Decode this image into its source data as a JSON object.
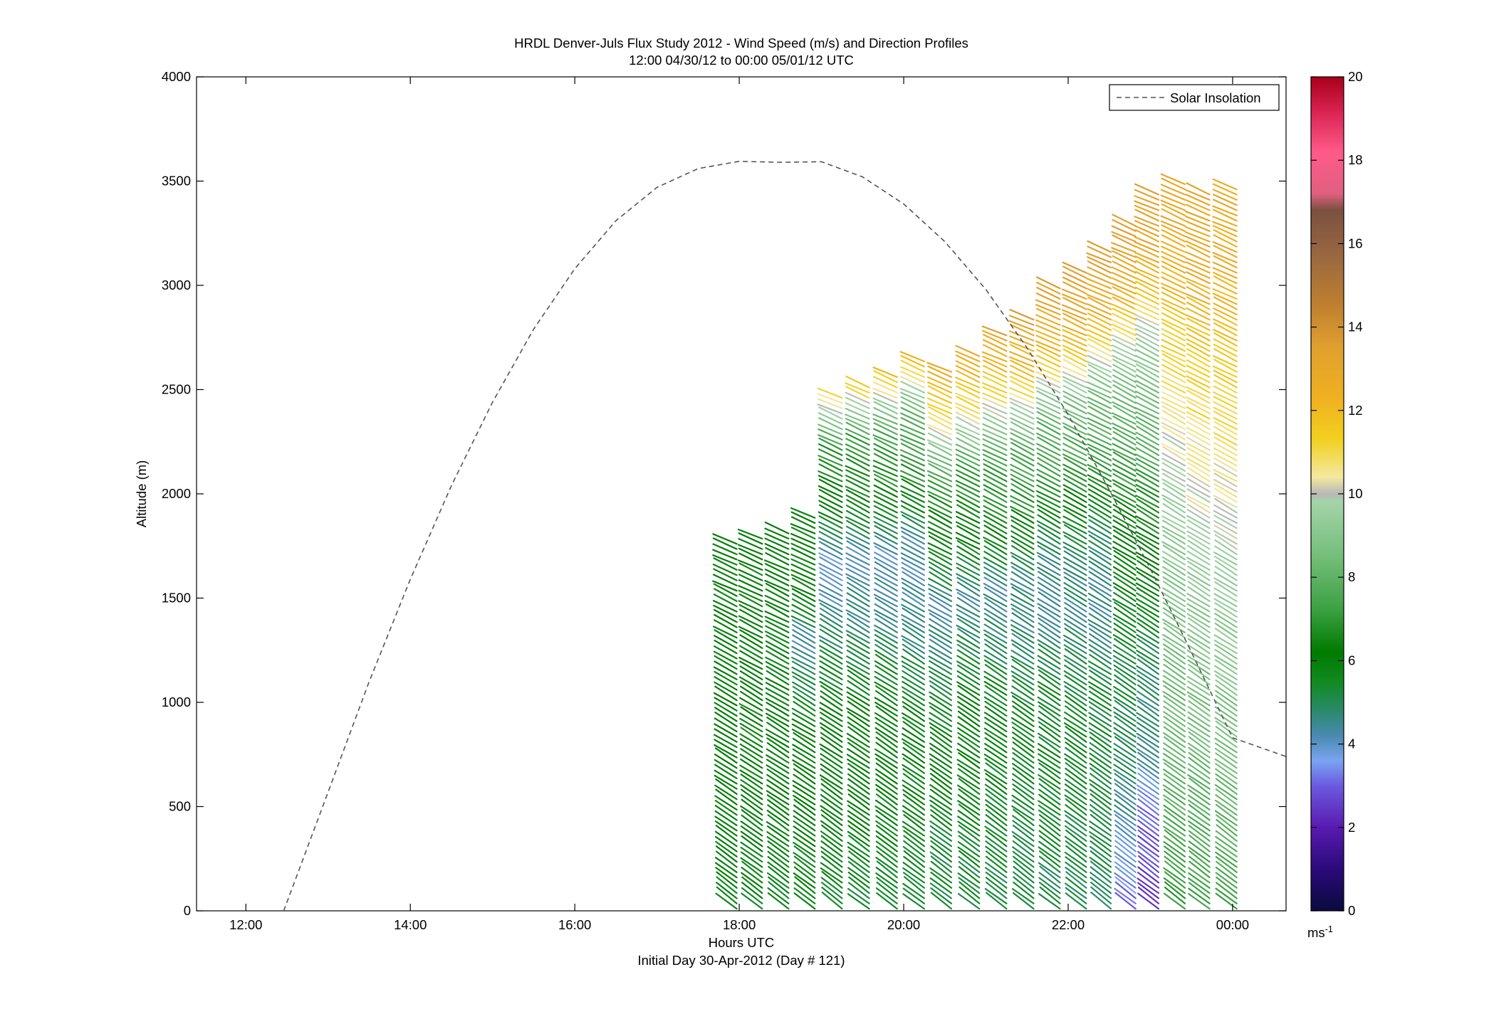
{
  "chart_data": {
    "type": "wind-barb-profile",
    "title": "HRDL Denver-Juls Flux Study 2012 - Wind Speed (m/s) and Direction Profiles",
    "subtitle": "12:00 04/30/12 to 00:00 05/01/12  UTC",
    "xlabel": "Hours UTC",
    "xlabel2": "Initial Day 30-Apr-2012 (Day # 121)",
    "ylabel": "Altitude (m)",
    "xlim": [
      11.4,
      24.65
    ],
    "ylim": [
      0,
      4000
    ],
    "x_ticks": [
      12,
      14,
      16,
      18,
      20,
      22,
      24
    ],
    "x_tick_labels": [
      "12:00",
      "14:00",
      "16:00",
      "18:00",
      "20:00",
      "22:00",
      "00:00"
    ],
    "y_ticks": [
      0,
      500,
      1000,
      1500,
      2000,
      2500,
      3000,
      3500,
      4000
    ],
    "y_tick_labels": [
      "0",
      "500",
      "1000",
      "1500",
      "2000",
      "2500",
      "3000",
      "3500",
      "4000"
    ],
    "legend": {
      "position": "top-right",
      "entries": [
        "Solar Insolation"
      ]
    },
    "colorbar": {
      "range": [
        0,
        20
      ],
      "ticks": [
        0,
        2,
        4,
        6,
        8,
        10,
        12,
        14,
        16,
        18,
        20
      ],
      "tick_labels": [
        "0",
        "2",
        "4",
        "6",
        "8",
        "10",
        "12",
        "14",
        "16",
        "18",
        "20"
      ],
      "unit_label": "ms",
      "unit_exponent": "-1",
      "stops": [
        {
          "v": 0,
          "c": "#0a0a3c"
        },
        {
          "v": 1,
          "c": "#2a0a7a"
        },
        {
          "v": 2,
          "c": "#5a1ab0"
        },
        {
          "v": 3,
          "c": "#6a5ae0"
        },
        {
          "v": 3.6,
          "c": "#7aa4f0"
        },
        {
          "v": 4.2,
          "c": "#4a8ab0"
        },
        {
          "v": 4.8,
          "c": "#2a8a6a"
        },
        {
          "v": 5.5,
          "c": "#118a1f"
        },
        {
          "v": 6.2,
          "c": "#007a00"
        },
        {
          "v": 7.2,
          "c": "#3aa040"
        },
        {
          "v": 8.5,
          "c": "#74be7a"
        },
        {
          "v": 9.8,
          "c": "#a4d4a8"
        },
        {
          "v": 10,
          "c": "#b8b8b8"
        },
        {
          "v": 10.4,
          "c": "#f4e8a0"
        },
        {
          "v": 11.3,
          "c": "#f2d020"
        },
        {
          "v": 12.3,
          "c": "#f0b020"
        },
        {
          "v": 13.5,
          "c": "#e0a030"
        },
        {
          "v": 14.5,
          "c": "#c08030"
        },
        {
          "v": 15.7,
          "c": "#9a6840"
        },
        {
          "v": 16.8,
          "c": "#7a5040"
        },
        {
          "v": 17.2,
          "c": "#e06080"
        },
        {
          "v": 18.2,
          "c": "#ff5a88"
        },
        {
          "v": 19.2,
          "c": "#d82050"
        },
        {
          "v": 20,
          "c": "#a80018"
        }
      ]
    },
    "solar_insolation": {
      "name": "Solar Insolation",
      "style": "dashed",
      "color": "#555555",
      "x": [
        12.46,
        13.0,
        13.5,
        14.0,
        14.5,
        15.0,
        15.5,
        16.0,
        16.5,
        17.0,
        17.5,
        18.0,
        18.5,
        19.0,
        19.5,
        20.0,
        20.5,
        21.0,
        21.5,
        22.0,
        22.5,
        23.0,
        23.5,
        24.0,
        24.65
      ],
      "y": [
        0,
        570,
        1100,
        1590,
        2040,
        2440,
        2790,
        3080,
        3310,
        3470,
        3560,
        3595,
        3590,
        3593,
        3520,
        3390,
        3210,
        2980,
        2700,
        2380,
        2020,
        1640,
        1240,
        830,
        740
      ]
    },
    "profile_scans": [
      {
        "t": 17.97,
        "ztop": 1760,
        "spd": [
          5.6,
          5.9,
          6.1,
          6.2,
          6.3,
          6.1,
          6.0,
          6.4,
          6.3,
          6.2
        ]
      },
      {
        "t": 18.28,
        "ztop": 1800,
        "spd": [
          5.6,
          5.8,
          6.0,
          6.3,
          6.4,
          6.2,
          6.0,
          6.2,
          6.5,
          6.0
        ]
      },
      {
        "t": 18.6,
        "ztop": 1820,
        "spd": [
          5.5,
          5.7,
          6.0,
          6.1,
          6.2,
          6.0,
          5.8,
          6.1,
          6.3,
          6.1
        ]
      },
      {
        "t": 18.92,
        "ztop": 1900,
        "spd": [
          5.5,
          5.8,
          6.0,
          6.1,
          6.0,
          5.2,
          4.2,
          6.1,
          6.4,
          6.2
        ]
      },
      {
        "t": 19.25,
        "ztop": 2480,
        "spd": [
          5.3,
          5.7,
          5.9,
          6.0,
          5.5,
          4.5,
          4.0,
          6.3,
          7.0,
          11.5
        ]
      },
      {
        "t": 19.58,
        "ztop": 2520,
        "spd": [
          5.4,
          5.8,
          6.1,
          6.2,
          5.6,
          4.6,
          3.9,
          6.4,
          7.2,
          11.8
        ]
      },
      {
        "t": 19.92,
        "ztop": 2560,
        "spd": [
          5.3,
          5.6,
          6.0,
          6.1,
          5.4,
          4.3,
          4.1,
          6.6,
          7.4,
          12.0
        ]
      },
      {
        "t": 20.25,
        "ztop": 2640,
        "spd": [
          5.2,
          5.5,
          5.9,
          6.0,
          5.0,
          4.2,
          4.4,
          6.8,
          7.6,
          12.2
        ]
      },
      {
        "t": 20.58,
        "ztop": 2600,
        "spd": [
          5.1,
          5.4,
          5.8,
          5.8,
          4.8,
          4.3,
          6.2,
          7.0,
          10.6,
          12.8
        ]
      },
      {
        "t": 20.92,
        "ztop": 2680,
        "spd": [
          5.2,
          5.5,
          5.8,
          6.0,
          5.2,
          4.4,
          6.3,
          7.2,
          10.8,
          12.9
        ]
      },
      {
        "t": 21.25,
        "ztop": 2760,
        "spd": [
          5.1,
          5.4,
          5.7,
          5.8,
          5.0,
          4.5,
          6.5,
          7.4,
          11.0,
          13.2
        ]
      },
      {
        "t": 21.58,
        "ztop": 2840,
        "spd": [
          5.0,
          5.3,
          5.6,
          5.6,
          4.8,
          4.6,
          6.7,
          7.8,
          11.6,
          13.4
        ]
      },
      {
        "t": 21.9,
        "ztop": 3000,
        "spd": [
          5.0,
          5.3,
          5.6,
          5.5,
          4.6,
          4.6,
          6.8,
          8.0,
          12.0,
          13.5
        ]
      },
      {
        "t": 22.22,
        "ztop": 3060,
        "spd": [
          5.0,
          5.2,
          5.5,
          5.4,
          4.6,
          4.7,
          7.0,
          8.3,
          12.2,
          13.6
        ]
      },
      {
        "t": 22.52,
        "ztop": 3180,
        "spd": [
          4.9,
          5.1,
          5.4,
          5.3,
          4.5,
          4.8,
          7.2,
          8.5,
          12.3,
          13.7
        ]
      },
      {
        "t": 22.82,
        "ztop": 3300,
        "spd": [
          3.0,
          4.4,
          5.0,
          5.2,
          5.6,
          6.4,
          7.6,
          8.9,
          12.4,
          13.6
        ]
      },
      {
        "t": 23.1,
        "ztop": 3450,
        "spd": [
          2.4,
          3.0,
          4.6,
          5.0,
          5.8,
          6.8,
          8.0,
          9.4,
          12.5,
          13.4
        ]
      },
      {
        "t": 23.42,
        "ztop": 3500,
        "spd": [
          7.0,
          7.6,
          8.2,
          8.6,
          9.0,
          9.6,
          10.4,
          11.4,
          12.4,
          13.2
        ]
      },
      {
        "t": 23.72,
        "ztop": 3440,
        "spd": [
          7.2,
          7.8,
          8.4,
          8.8,
          9.2,
          10.0,
          10.8,
          11.6,
          12.6,
          13.0
        ]
      },
      {
        "t": 24.05,
        "ztop": 3480,
        "spd": [
          7.4,
          8.0,
          8.6,
          9.0,
          9.4,
          10.2,
          11.0,
          11.8,
          12.4,
          12.8
        ]
      }
    ]
  }
}
